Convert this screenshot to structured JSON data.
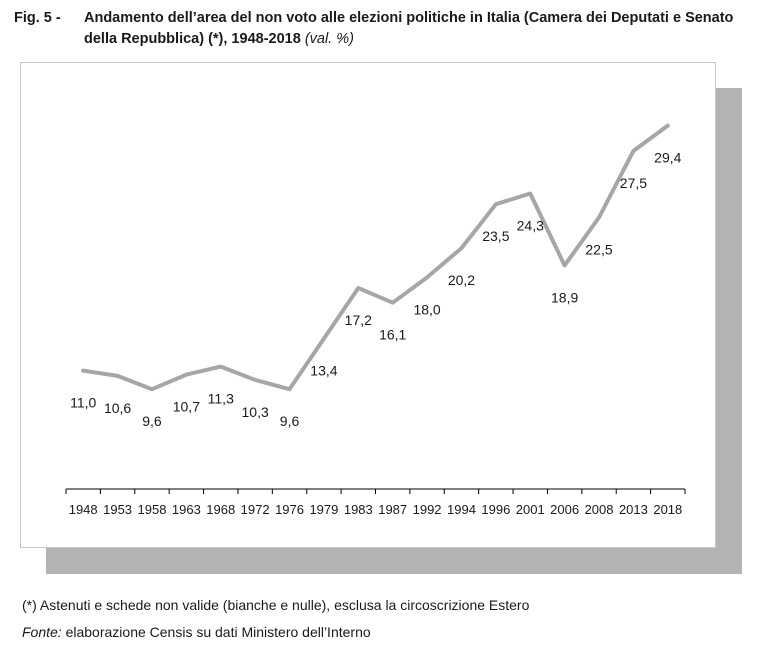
{
  "figure": {
    "number": "Fig. 5 -",
    "title": "Andamento dell’area del non voto alle elezioni politiche in Italia (Camera dei Deputati e Senato della Repubblica) (*), 1948-2018",
    "unit": "(val. %)"
  },
  "footnote": "(*) Astenuti e schede non valide (bianche e nulle), esclusa la circoscrizione Estero",
  "source": {
    "label": "Fonte:",
    "text": " elaborazione Censis su dati Ministero dell’Interno"
  },
  "colors": {
    "line": "#a6a6a6",
    "shadow": "#b3b3b3",
    "axis": "#000000",
    "text": "#1a1a1a"
  },
  "chart_data": {
    "type": "line",
    "categories": [
      "1948",
      "1953",
      "1958",
      "1963",
      "1968",
      "1972",
      "1976",
      "1979",
      "1983",
      "1987",
      "1992",
      "1994",
      "1996",
      "2001",
      "2006",
      "2008",
      "2013",
      "2018"
    ],
    "values": [
      11.0,
      10.6,
      9.6,
      10.7,
      11.3,
      10.3,
      9.6,
      13.4,
      17.2,
      16.1,
      18.0,
      20.2,
      23.5,
      24.3,
      18.9,
      22.5,
      27.5,
      29.4
    ],
    "value_labels": [
      "11,0",
      "10,6",
      "9,6",
      "10,7",
      "11,3",
      "10,3",
      "9,6",
      "13,4",
      "17,2",
      "16,1",
      "18,0",
      "20,2",
      "23,5",
      "24,3",
      "18,9",
      "22,5",
      "27,5",
      "29,4"
    ],
    "ylim": [
      0,
      32
    ],
    "y_axis_visible": false,
    "grid": false,
    "legend": "none"
  }
}
